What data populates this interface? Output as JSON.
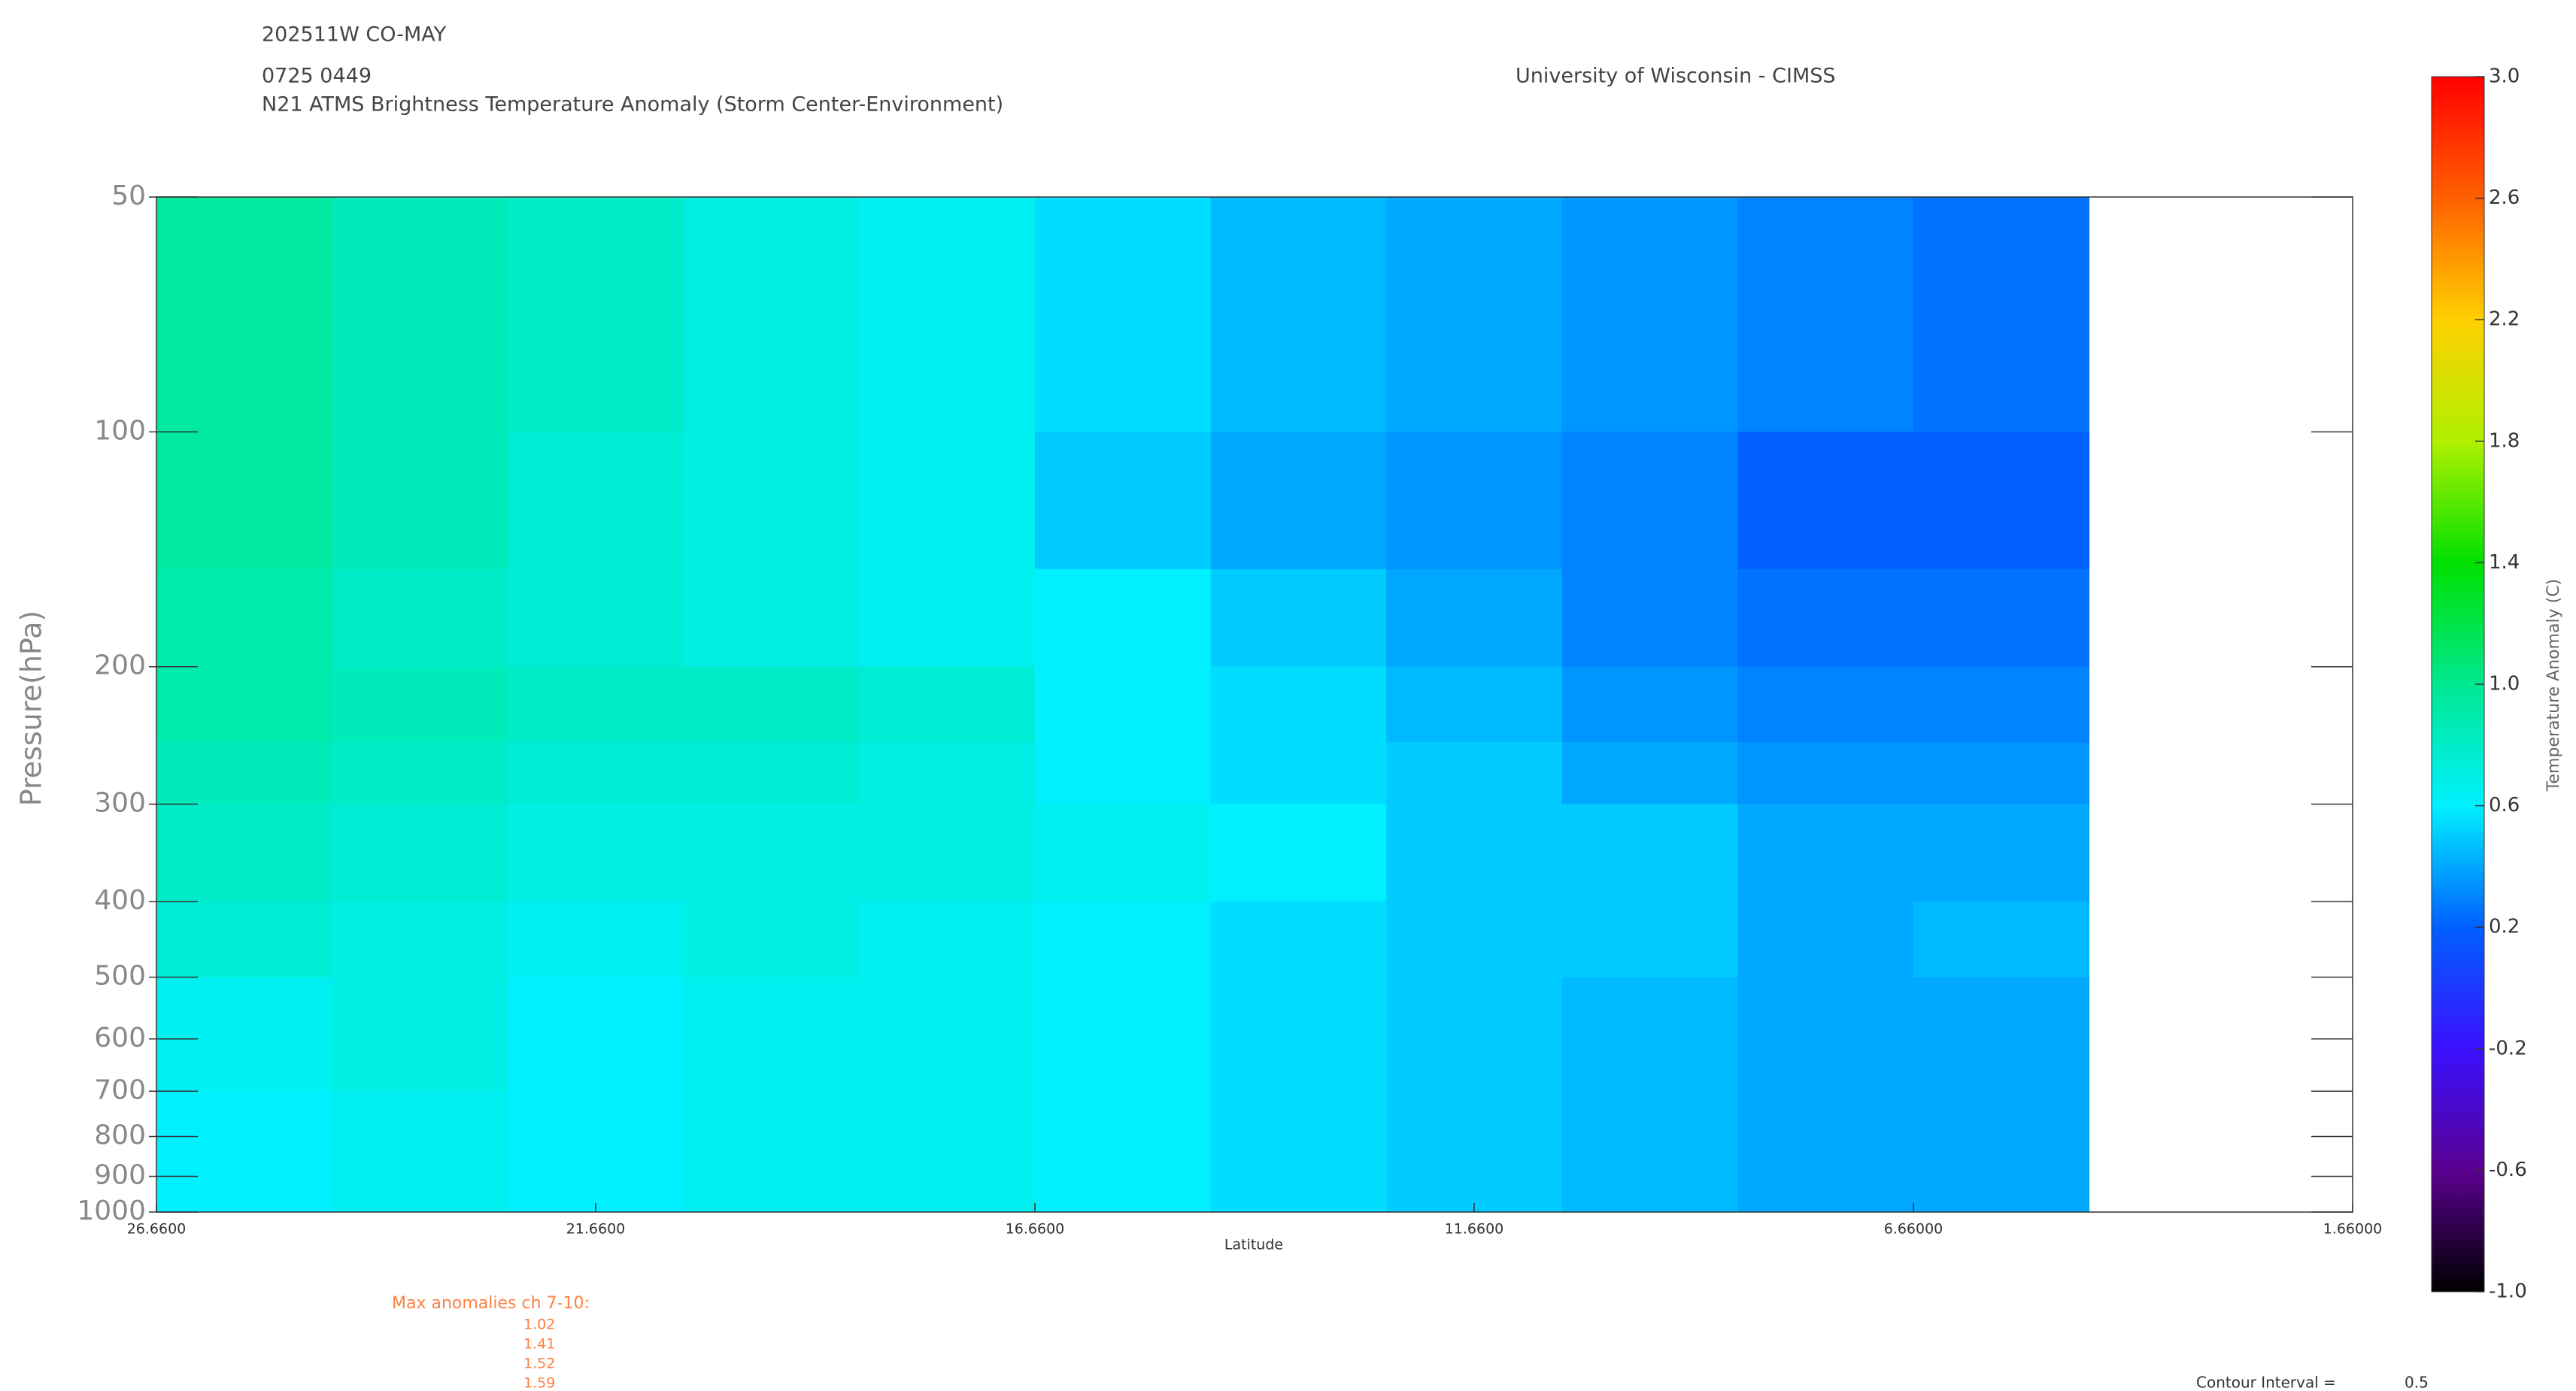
{
  "chart_data": {
    "type": "contour",
    "header": [
      "202511W CO-MAY",
      "0725 0449",
      "N21 ATMS Brightness Temperature Anomaly (Storm Center-Environment)"
    ],
    "institution": "University of Wisconsin - CIMSS",
    "xlabel": "Latitude",
    "ylabel": "Pressure(hPa)",
    "colorbar_label": "Temperature Anomaly (C)",
    "xlim": [
      26.66,
      1.66
    ],
    "xticks": [
      {
        "value": 26.66,
        "label": "26.6600"
      },
      {
        "value": 21.66,
        "label": "21.6600"
      },
      {
        "value": 16.66,
        "label": "16.6600"
      },
      {
        "value": 11.66,
        "label": "11.6600"
      },
      {
        "value": 6.66,
        "label": "6.66000"
      },
      {
        "value": 1.66,
        "label": "1.66000"
      }
    ],
    "ylim": [
      50,
      1000
    ],
    "ylog": true,
    "yticks": [
      50,
      100,
      200,
      300,
      400,
      500,
      600,
      700,
      800,
      900,
      1000
    ],
    "xbins": [
      26.66,
      24.66,
      22.66,
      20.66,
      18.66,
      16.66,
      14.66,
      12.66,
      10.66,
      8.66,
      6.66,
      4.66
    ],
    "ybins": [
      50,
      100,
      150,
      200,
      250,
      300,
      400,
      500,
      700,
      1000
    ],
    "z": [
      [
        0.95,
        0.85,
        0.8,
        0.7,
        0.65,
        0.55,
        0.45,
        0.4,
        0.35,
        0.3,
        0.25
      ],
      [
        0.95,
        0.85,
        0.75,
        0.7,
        0.65,
        0.5,
        0.4,
        0.35,
        0.3,
        0.2,
        0.2
      ],
      [
        0.9,
        0.8,
        0.75,
        0.7,
        0.65,
        0.6,
        0.5,
        0.4,
        0.3,
        0.25,
        0.25
      ],
      [
        0.9,
        0.85,
        0.8,
        0.8,
        0.75,
        0.6,
        0.55,
        0.45,
        0.35,
        0.3,
        0.3
      ],
      [
        0.85,
        0.8,
        0.75,
        0.75,
        0.7,
        0.6,
        0.55,
        0.5,
        0.4,
        0.35,
        0.35
      ],
      [
        0.8,
        0.75,
        0.7,
        0.7,
        0.7,
        0.65,
        0.6,
        0.5,
        0.5,
        0.4,
        0.4
      ],
      [
        0.75,
        0.7,
        0.65,
        0.7,
        0.65,
        0.6,
        0.55,
        0.5,
        0.5,
        0.4,
        0.45
      ],
      [
        0.65,
        0.7,
        0.6,
        0.65,
        0.65,
        0.6,
        0.55,
        0.5,
        0.45,
        0.4,
        0.4
      ],
      [
        0.6,
        0.65,
        0.6,
        0.65,
        0.65,
        0.6,
        0.55,
        0.5,
        0.45,
        0.4,
        0.4
      ]
    ],
    "clim": [
      -1,
      3
    ],
    "colorscale": [
      "#000000",
      "#5a0090",
      "#3a10ff",
      "#0060ff",
      "#00f0ff",
      "#00e890",
      "#00e000",
      "#b0f000",
      "#ffd000",
      "#ff6000",
      "#ff0000"
    ],
    "cticks": [
      {
        "value": -1,
        "label": "-1.0"
      },
      -0.6,
      -0.2,
      0.2,
      0.6,
      {
        "value": 1,
        "label": "1.0"
      },
      1.4,
      1.8,
      2.2,
      2.6,
      {
        "value": 3,
        "label": "3.0"
      }
    ],
    "max_anomalies_title": "Max anomalies ch 7-10:",
    "max_anomalies": [
      1.02,
      1.41,
      1.52,
      1.59
    ],
    "contour_interval_label": "Contour Interval =",
    "contour_interval": 0.5
  }
}
